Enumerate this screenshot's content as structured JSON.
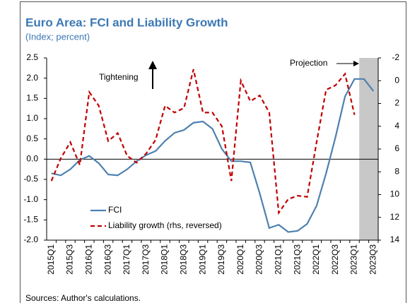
{
  "chart_data": {
    "type": "line",
    "title": "Euro Area: FCI and Liability Growth",
    "subtitle": "(Index; percent)",
    "footer": "Sources: Author's calculations.",
    "categories": [
      "2015Q1",
      null,
      "2015Q3",
      null,
      "2016Q1",
      null,
      "2016Q3",
      null,
      "2017Q1",
      null,
      "2017Q3",
      null,
      "2018Q1",
      null,
      "2018Q3",
      null,
      "2019Q1",
      null,
      "2019Q3",
      null,
      "2020Q1",
      null,
      "2020Q3",
      null,
      "2021Q1",
      null,
      "2021Q3",
      null,
      "2022Q1",
      null,
      "2022Q3",
      null,
      "2023Q1",
      null,
      "2023Q3"
    ],
    "series": [
      {
        "name": "FCI",
        "color": "#4e81b0",
        "dashed": false,
        "values": [
          -0.35,
          -0.4,
          -0.25,
          -0.02,
          0.08,
          -0.1,
          -0.38,
          -0.4,
          -0.25,
          -0.05,
          0.1,
          0.2,
          0.45,
          0.65,
          0.72,
          0.9,
          0.93,
          0.75,
          0.25,
          -0.05,
          -0.05,
          -0.08,
          -0.85,
          -1.7,
          -1.62,
          -1.8,
          -1.77,
          -1.6,
          -1.15,
          -0.35,
          0.55,
          1.55,
          1.98,
          1.98,
          1.68
        ]
      },
      {
        "name": "Liability growth (rhs, reversed)",
        "color": "#c00000",
        "dashed": true,
        "axis": "y2",
        "values": [
          8.8,
          6.8,
          5.4,
          7.4,
          1.0,
          2.2,
          5.3,
          4.6,
          6.6,
          7.2,
          6.4,
          5.2,
          2.2,
          2.8,
          2.4,
          -1.0,
          2.8,
          2.8,
          4.0,
          8.8,
          0.0,
          1.8,
          1.3,
          2.8,
          11.6,
          10.4,
          10.1,
          10.2,
          5.4,
          0.8,
          0.4,
          -0.6,
          3.0,
          null,
          null
        ]
      }
    ],
    "ylim": [
      -2,
      2.5
    ],
    "yticks": [
      2.5,
      {
        "value": 2,
        "label": "2.0"
      },
      1.5,
      {
        "value": 1,
        "label": "1.0"
      },
      0.5,
      {
        "value": 0,
        "label": "0.0"
      },
      -0.5,
      {
        "value": -1,
        "label": "-1.0"
      },
      -1.5,
      {
        "value": -2,
        "label": "-2.0"
      }
    ],
    "y2lim": [
      -2,
      14
    ],
    "y2_reversed": true,
    "y2ticks": [
      -2,
      0,
      2,
      4,
      6,
      8,
      10,
      12,
      14
    ],
    "shade": {
      "from": 33,
      "to": 34,
      "color": "#c8c8c8"
    },
    "annotations": [
      "Tightening",
      "Projection"
    ]
  }
}
